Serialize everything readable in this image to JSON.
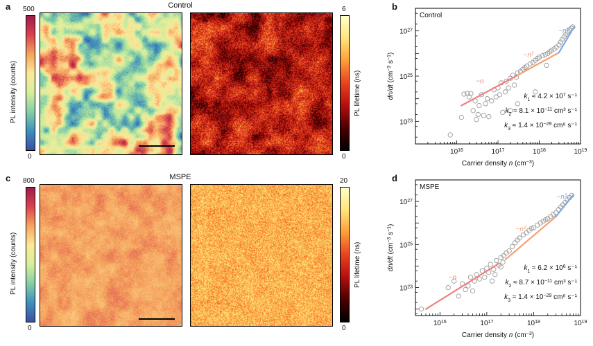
{
  "figure": {
    "panels": {
      "a": {
        "letter": "a"
      },
      "b": {
        "letter": "b"
      },
      "c": {
        "letter": "c"
      },
      "d": {
        "letter": "d"
      }
    },
    "row_titles": {
      "control": "Control",
      "mspe": "MSPE"
    },
    "colorbars": {
      "a_intensity": {
        "top": "500",
        "bottom": "0",
        "label": "PL intensity (counts)"
      },
      "a_lifetime": {
        "top": "6",
        "bottom": "0",
        "label": "PL lifetime (ns)"
      },
      "c_intensity": {
        "top": "800",
        "bottom": "0",
        "label": "PL intensity (counts)"
      },
      "c_lifetime": {
        "top": "20",
        "bottom": "0",
        "label": "PL lifetime (ns)"
      }
    }
  },
  "chart_data": [
    {
      "type": "scatter",
      "panel": "b",
      "title": "Control",
      "xlabel": "Carrier density n (cm⁻³)",
      "ylabel": "dn/dt (cm⁻³ s⁻¹)",
      "xscale": "log",
      "yscale": "log",
      "xlim": [
        1000000000000000.0,
        1e+19
      ],
      "ylim": [
        1e+22,
        1e+28
      ],
      "x_ticks": [
        {
          "v": 1e+16,
          "base": "10",
          "exp": "16"
        },
        {
          "v": 1e+17,
          "base": "10",
          "exp": "17"
        },
        {
          "v": 1e+18,
          "base": "10",
          "exp": "18"
        },
        {
          "v": 1e+19,
          "base": "10",
          "exp": "19"
        }
      ],
      "y_ticks": [
        {
          "v": 1e+23,
          "base": "10",
          "exp": "23"
        },
        {
          "v": 1e+25,
          "base": "10",
          "exp": "25"
        },
        {
          "v": 1e+27,
          "base": "10",
          "exp": "27"
        }
      ],
      "fits": [
        {
          "label": "~n",
          "base": "~n",
          "sup": "",
          "color": "#f08080",
          "x": [
            1.3e+16,
            3e+17
          ],
          "y": [
            5e+23,
            1.1e+25
          ]
        },
        {
          "label": "~n²",
          "base": "~n",
          "sup": "2",
          "color": "#f4a070",
          "x": [
            3e+17,
            3e+18
          ],
          "y": [
            1.1e+25,
            1.1e+26
          ]
        },
        {
          "label": "~n³",
          "base": "~n",
          "sup": "3",
          "color": "#7fa8e0",
          "x": [
            3e+18,
            7e+18
          ],
          "y": [
            1.1e+26,
            1.5e+27
          ]
        }
      ],
      "constants": [
        {
          "name": "k",
          "sub": "1",
          "text": " ≈ 4.2 × 10",
          "exp": "7",
          "unit": " s⁻¹"
        },
        {
          "name": "k",
          "sub": "2",
          "text": " ≈ 8.1 × 10",
          "exp": "−11",
          "unit": " cm³ s⁻¹"
        },
        {
          "name": "k",
          "sub": "3",
          "text": " ≈ 1.4 × 10",
          "exp": "−29",
          "unit": " cm⁶ s⁻¹"
        }
      ],
      "points": [
        [
          7000000000000000.0,
          2.5e+22
        ],
        [
          1.3e+16,
          1.5e+23
        ],
        [
          1.5e+16,
          1.6e+24
        ],
        [
          1.8e+16,
          1.7e+24
        ],
        [
          2e+16,
          1.2e+24
        ],
        [
          2.2e+16,
          1.7e+24
        ],
        [
          2.5e+16,
          3e+23
        ],
        [
          2.8e+16,
          8e+23
        ],
        [
          3e+16,
          1.2e+23
        ],
        [
          3.3e+16,
          2e+23
        ],
        [
          3.5e+16,
          5e+23
        ],
        [
          4e+16,
          1.5e+24
        ],
        [
          4.5e+16,
          1.8e+23
        ],
        [
          5e+16,
          6e+23
        ],
        [
          5.5e+16,
          1e+24
        ],
        [
          6e+16,
          1.6e+23
        ],
        [
          7e+16,
          8e+23
        ],
        [
          8e+16,
          2.5e+24
        ],
        [
          9e+16,
          1.2e+24
        ],
        [
          1e+17,
          3e+24
        ],
        [
          1.1e+17,
          1.5e+24
        ],
        [
          1.2e+17,
          5e+24
        ],
        [
          1.3e+17,
          2.5e+23
        ],
        [
          1.5e+17,
          2e+24
        ],
        [
          1.6e+17,
          6e+24
        ],
        [
          1.8e+17,
          3e+24
        ],
        [
          2e+17,
          8e+24
        ],
        [
          2.3e+17,
          1.1e+25
        ],
        [
          2.5e+17,
          4e+24
        ],
        [
          2.8e+17,
          9e+24
        ],
        [
          3e+17,
          1.4e+25
        ],
        [
          3.5e+17,
          1.6e+25
        ],
        [
          4e+17,
          2e+25
        ],
        [
          4.5e+17,
          2.4e+25
        ],
        [
          5e+17,
          2.8e+25
        ],
        [
          6e+17,
          3.5e+25
        ],
        [
          7e+17,
          4e+25
        ],
        [
          8e+17,
          5e+25
        ],
        [
          9e+17,
          6e+25
        ],
        [
          1e+18,
          7e+25
        ],
        [
          1.2e+18,
          8e+25
        ],
        [
          1.4e+18,
          9e+25
        ],
        [
          1.6e+18,
          1e+26
        ],
        [
          1.8e+18,
          1.2e+26
        ],
        [
          2e+18,
          1.4e+26
        ],
        [
          2.3e+18,
          1.6e+26
        ],
        [
          2.6e+18,
          1.9e+26
        ],
        [
          3e+18,
          2.4e+26
        ],
        [
          3.3e+18,
          3.2e+26
        ],
        [
          3.6e+18,
          4.2e+26
        ],
        [
          4e+18,
          5.5e+26
        ],
        [
          4.4e+18,
          7e+26
        ],
        [
          4.8e+18,
          9e+26
        ],
        [
          5.3e+18,
          1.1e+27
        ],
        [
          6e+18,
          1.3e+27
        ],
        [
          6.5e+18,
          1.5e+27
        ],
        [
          2e+17,
          3e+23
        ],
        [
          3e+17,
          6e+23
        ],
        [
          1.5e+18,
          3e+25
        ],
        [
          8e+17,
          2e+24
        ]
      ]
    },
    {
      "type": "scatter",
      "panel": "d",
      "title": "MSPE",
      "xlabel": "Carrier density n (cm⁻³)",
      "ylabel": "dn/dt (cm⁻³ s⁻¹)",
      "xscale": "log",
      "yscale": "log",
      "xlim": [
        3000000000000000.0,
        1e+19
      ],
      "ylim": [
        5e+21,
        1e+28
      ],
      "x_ticks": [
        {
          "v": 1e+16,
          "base": "10",
          "exp": "16"
        },
        {
          "v": 1e+17,
          "base": "10",
          "exp": "17"
        },
        {
          "v": 1e+18,
          "base": "10",
          "exp": "18"
        },
        {
          "v": 1e+19,
          "base": "10",
          "exp": "19"
        }
      ],
      "y_ticks": [
        {
          "v": 1e+23,
          "base": "10",
          "exp": "23"
        },
        {
          "v": 1e+25,
          "base": "10",
          "exp": "25"
        },
        {
          "v": 1e+27,
          "base": "10",
          "exp": "27"
        }
      ],
      "fits": [
        {
          "label": "~n",
          "base": "~n",
          "sup": "",
          "color": "#f08080",
          "x": [
            5000000000000000.0,
            1.8e+17
          ],
          "y": [
            1e+22,
            1.3e+24
          ]
        },
        {
          "label": "~n²",
          "base": "~n",
          "sup": "2",
          "color": "#f4a070",
          "x": [
            2.5e+17,
            3e+18
          ],
          "y": [
            2e+24,
            2e+26
          ]
        },
        {
          "label": "~n³",
          "base": "~n",
          "sup": "3",
          "color": "#7fa8e0",
          "x": [
            3e+18,
            7e+18
          ],
          "y": [
            2e+26,
            2e+27
          ]
        }
      ],
      "constants": [
        {
          "name": "k",
          "sub": "1",
          "text": " ≈ 6.2 × 10",
          "exp": "6",
          "unit": " s⁻¹"
        },
        {
          "name": "k",
          "sub": "2",
          "text": " ≈ 8.7 × 10",
          "exp": "−11",
          "unit": " cm³ s⁻¹"
        },
        {
          "name": "k",
          "sub": "3",
          "text": " ≈ 1.4 × 10",
          "exp": "−29",
          "unit": " cm⁶ s⁻¹"
        }
      ],
      "points": [
        [
          4000000000000000.0,
          1e+22
        ],
        [
          1.5e+16,
          1e+23
        ],
        [
          2e+16,
          2e+23
        ],
        [
          2.5e+16,
          4e+22
        ],
        [
          3e+16,
          1.5e+23
        ],
        [
          3.5e+16,
          8e+22
        ],
        [
          4e+16,
          1.2e+23
        ],
        [
          4.5e+16,
          3e+23
        ],
        [
          5e+16,
          7e+22
        ],
        [
          5.5e+16,
          2e+23
        ],
        [
          6e+16,
          4e+23
        ],
        [
          7e+16,
          2.5e+23
        ],
        [
          8e+16,
          6e+23
        ],
        [
          9e+16,
          3e+23
        ],
        [
          1e+17,
          8e+23
        ],
        [
          1.1e+17,
          5e+23
        ],
        [
          1.2e+17,
          1.2e+24
        ],
        [
          1.4e+17,
          7e+23
        ],
        [
          1.6e+17,
          1.8e+24
        ],
        [
          1.8e+17,
          1.1e+24
        ],
        [
          2e+17,
          2.5e+24
        ],
        [
          2.3e+17,
          3e+24
        ],
        [
          2.6e+17,
          4e+24
        ],
        [
          3e+17,
          5e+24
        ],
        [
          3.5e+17,
          8e+24
        ],
        [
          4e+17,
          1.2e+25
        ],
        [
          4.5e+17,
          1.6e+25
        ],
        [
          5e+17,
          2e+25
        ],
        [
          6e+17,
          2.8e+25
        ],
        [
          7e+17,
          3.5e+25
        ],
        [
          8e+17,
          4.5e+25
        ],
        [
          9e+17,
          5.5e+25
        ],
        [
          1e+18,
          6e+25
        ],
        [
          1.2e+18,
          8e+25
        ],
        [
          1.4e+18,
          1e+26
        ],
        [
          1.6e+18,
          1.2e+26
        ],
        [
          1.8e+18,
          1.4e+26
        ],
        [
          2e+18,
          1.6e+26
        ],
        [
          2.3e+18,
          2e+26
        ],
        [
          2.6e+18,
          2.5e+26
        ],
        [
          3e+18,
          3e+26
        ],
        [
          3.4e+18,
          4.2e+26
        ],
        [
          3.8e+18,
          5.5e+26
        ],
        [
          4.2e+18,
          7e+26
        ],
        [
          4.7e+18,
          9e+26
        ],
        [
          5.2e+18,
          1.2e+27
        ],
        [
          5.8e+18,
          1.5e+27
        ],
        [
          6.5e+18,
          1.9e+27
        ],
        [
          1.3e+17,
          2e+23
        ],
        [
          1.5e+17,
          4e+23
        ],
        [
          2e+17,
          9e+23
        ],
        [
          2.2e+17,
          1.5e+24
        ]
      ]
    }
  ]
}
